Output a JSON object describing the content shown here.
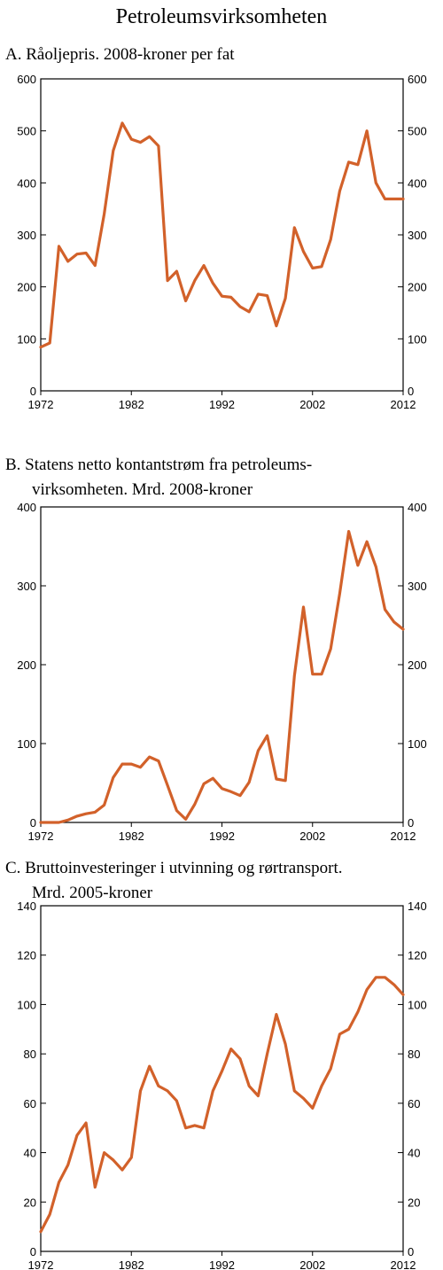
{
  "page_title": "Petroleumsvirksomheten",
  "colors": {
    "line": "#D2612A",
    "frame": "#000000"
  },
  "chart_data": [
    {
      "type": "line",
      "title_lines": [
        "A. Råoljepris. 2008-kroner per fat"
      ],
      "xlabel": "",
      "ylabel": "",
      "xlim": [
        1972,
        2012
      ],
      "ylim": [
        0,
        600
      ],
      "x_ticks": [
        1972,
        1982,
        1992,
        2002,
        2012
      ],
      "y_ticks": [
        0,
        100,
        200,
        300,
        400,
        500,
        600
      ],
      "x_tick_labels": [
        "1972",
        "1982",
        "1992",
        "2002",
        "2012"
      ],
      "y_tick_labels": [
        "0",
        "100",
        "200",
        "300",
        "400",
        "500",
        "600"
      ],
      "grid": false,
      "series": [
        {
          "x": [
            1972,
            1973,
            1974,
            1975,
            1976,
            1977,
            1978,
            1979,
            1980,
            1981,
            1982,
            1983,
            1984,
            1985,
            1986,
            1987,
            1988,
            1989,
            1990,
            1991,
            1992,
            1993,
            1994,
            1995,
            1996,
            1997,
            1998,
            1999,
            2000,
            2001,
            2002,
            2003,
            2004,
            2005,
            2006,
            2007,
            2008,
            2009,
            2010,
            2011,
            2012
          ],
          "values": [
            84,
            92,
            278,
            249,
            263,
            265,
            241,
            340,
            462,
            515,
            484,
            478,
            489,
            471,
            212,
            230,
            173,
            212,
            241,
            207,
            182,
            180,
            162,
            152,
            186,
            183,
            125,
            178,
            314,
            268,
            236,
            239,
            291,
            384,
            440,
            435,
            500,
            400,
            369,
            369,
            369
          ]
        }
      ]
    },
    {
      "type": "line",
      "title_lines": [
        "B. Statens netto kontantstrøm fra petroleums-",
        "virksomheten. Mrd. 2008-kroner"
      ],
      "xlabel": "",
      "ylabel": "",
      "xlim": [
        1972,
        2012
      ],
      "ylim": [
        0,
        400
      ],
      "x_ticks": [
        1972,
        1982,
        1992,
        2002,
        2012
      ],
      "y_ticks": [
        0,
        100,
        200,
        300,
        400
      ],
      "x_tick_labels": [
        "1972",
        "1982",
        "1992",
        "2002",
        "2012"
      ],
      "y_tick_labels": [
        "0",
        "100",
        "200",
        "300",
        "400"
      ],
      "grid": false,
      "series": [
        {
          "x": [
            1972,
            1973,
            1974,
            1975,
            1976,
            1977,
            1978,
            1979,
            1980,
            1981,
            1982,
            1983,
            1984,
            1985,
            1986,
            1987,
            1988,
            1989,
            1990,
            1991,
            1992,
            1993,
            1994,
            1995,
            1996,
            1997,
            1998,
            1999,
            2000,
            2001,
            2002,
            2003,
            2004,
            2005,
            2006,
            2007,
            2008,
            2009,
            2010,
            2011,
            2012
          ],
          "values": [
            0,
            0,
            0,
            3,
            8,
            11,
            13,
            22,
            57,
            74,
            74,
            70,
            83,
            78,
            47,
            15,
            4,
            23,
            49,
            56,
            43,
            39,
            34,
            51,
            91,
            110,
            55,
            53,
            186,
            273,
            188,
            188,
            220,
            290,
            369,
            326,
            356,
            324,
            270,
            254,
            245
          ]
        }
      ]
    },
    {
      "type": "line",
      "title_lines": [
        "C. Bruttoinvesteringer i utvinning og rørtransport.",
        "Mrd. 2005-kroner"
      ],
      "xlabel": "",
      "ylabel": "",
      "xlim": [
        1972,
        2012
      ],
      "ylim": [
        0,
        140
      ],
      "x_ticks": [
        1972,
        1982,
        1992,
        2002,
        2012
      ],
      "y_ticks": [
        0,
        20,
        40,
        60,
        80,
        100,
        120,
        140
      ],
      "x_tick_labels": [
        "1972",
        "1982",
        "1992",
        "2002",
        "2012"
      ],
      "y_tick_labels": [
        "0",
        "20",
        "40",
        "60",
        "80",
        "100",
        "120",
        "140"
      ],
      "grid": false,
      "series": [
        {
          "x": [
            1972,
            1973,
            1974,
            1975,
            1976,
            1977,
            1978,
            1979,
            1980,
            1981,
            1982,
            1983,
            1984,
            1985,
            1986,
            1987,
            1988,
            1989,
            1990,
            1991,
            1992,
            1993,
            1994,
            1995,
            1996,
            1997,
            1998,
            1999,
            2000,
            2001,
            2002,
            2003,
            2004,
            2005,
            2006,
            2007,
            2008,
            2009,
            2010,
            2011,
            2012
          ],
          "values": [
            8,
            15,
            28,
            35,
            47,
            52,
            26,
            40,
            37,
            33,
            38,
            65,
            75,
            67,
            65,
            61,
            50,
            51,
            50,
            65,
            73,
            82,
            78,
            67,
            63,
            80,
            96,
            84,
            65,
            62,
            58,
            67,
            74,
            88,
            90,
            97,
            106,
            111,
            111,
            108,
            104
          ]
        }
      ]
    }
  ]
}
